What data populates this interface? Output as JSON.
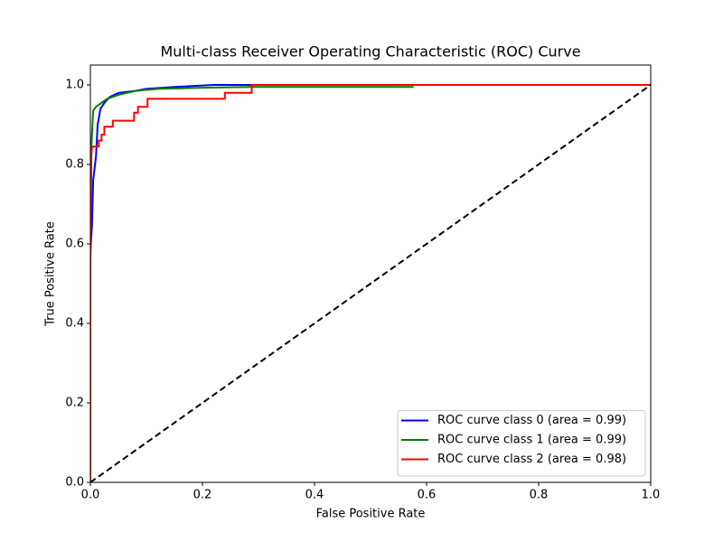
{
  "chart_data": {
    "type": "line",
    "title": "Multi-class Receiver Operating Characteristic (ROC) Curve",
    "x_label": "False Positive Rate",
    "y_label": "True Positive Rate",
    "xlim": [
      0,
      1
    ],
    "ylim": [
      0,
      1.05
    ],
    "xticks": [
      {
        "value": 0,
        "label": "0.0"
      },
      0.2,
      0.4,
      0.6,
      0.8,
      {
        "value": 1,
        "label": "1.0"
      }
    ],
    "yticks": [
      {
        "value": 0,
        "label": "0.0"
      },
      0.2,
      0.4,
      0.6,
      0.8,
      {
        "value": 1,
        "label": "1.0"
      }
    ],
    "grid": false,
    "legend_position": "lower right",
    "series": [
      {
        "name": "ROC curve class 0 (area = 0.99)",
        "color": "#0000ff",
        "x": [
          0,
          0,
          0.003,
          0.005,
          0.01,
          0.013,
          0.018,
          0.025,
          0.035,
          0.05,
          0.08,
          0.1,
          0.15,
          0.22,
          1
        ],
        "values": [
          0,
          0.58,
          0.65,
          0.76,
          0.82,
          0.9,
          0.94,
          0.955,
          0.97,
          0.98,
          0.985,
          0.99,
          0.995,
          1,
          1
        ]
      },
      {
        "name": "ROC curve class 1 (area = 0.99)",
        "color": "#008000",
        "x": [
          0,
          0,
          0.002,
          0.005,
          0.01,
          0.02,
          0.03,
          0.05,
          0.08,
          0.12,
          0.2,
          0.29,
          0.575,
          0.575,
          1
        ],
        "values": [
          0,
          0.55,
          0.85,
          0.935,
          0.945,
          0.955,
          0.965,
          0.975,
          0.985,
          0.99,
          0.993,
          0.995,
          0.995,
          1,
          1
        ]
      },
      {
        "name": "ROC curve class 2 (area = 0.98)",
        "color": "#ff0000",
        "x": [
          0,
          0,
          0.003,
          0.015,
          0.015,
          0.02,
          0.02,
          0.025,
          0.025,
          0.04,
          0.04,
          0.078,
          0.078,
          0.085,
          0.085,
          0.102,
          0.102,
          0.24,
          0.24,
          0.288,
          0.288,
          1
        ],
        "values": [
          0,
          0.8,
          0.845,
          0.845,
          0.86,
          0.86,
          0.875,
          0.875,
          0.895,
          0.895,
          0.91,
          0.91,
          0.93,
          0.93,
          0.945,
          0.945,
          0.965,
          0.965,
          0.98,
          0.98,
          1,
          1
        ]
      }
    ],
    "reference_line": {
      "color": "#000000",
      "dashed": true,
      "x": [
        0,
        1
      ],
      "values": [
        0,
        1
      ]
    }
  }
}
